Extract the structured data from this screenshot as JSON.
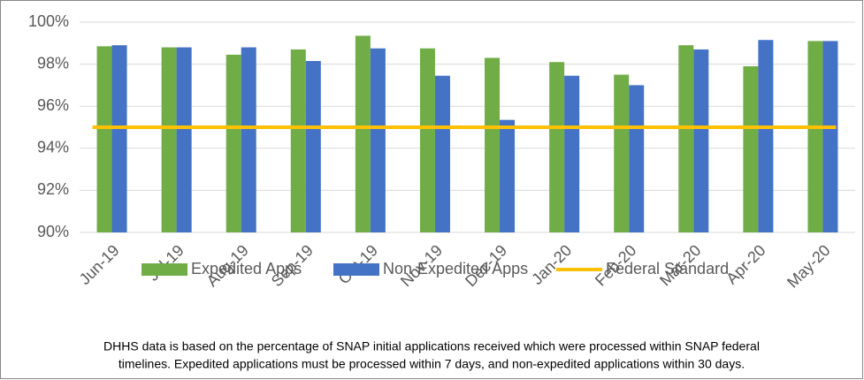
{
  "chart_data": {
    "type": "bar",
    "categories": [
      "Jun-19",
      "Jul-19",
      "Aug-19",
      "Sep-19",
      "Oct-19",
      "Nov-19",
      "Dec-19",
      "Jan-20",
      "Feb-20",
      "Mar-20",
      "Apr-20",
      "May-20"
    ],
    "series": [
      {
        "name": "Expedited Apps",
        "color": "#70ad47",
        "values": [
          98.85,
          98.8,
          98.45,
          98.7,
          99.35,
          98.75,
          98.3,
          98.1,
          97.5,
          98.9,
          97.9,
          99.1
        ]
      },
      {
        "name": "Non-Expedited Apps",
        "color": "#4472c4",
        "values": [
          98.9,
          98.8,
          98.8,
          98.15,
          98.75,
          97.45,
          95.35,
          97.45,
          97.0,
          98.7,
          99.15,
          99.1
        ]
      },
      {
        "name": "Federal Standard",
        "type": "line",
        "color": "#ffc000",
        "values": [
          95,
          95,
          95,
          95,
          95,
          95,
          95,
          95,
          95,
          95,
          95,
          95
        ]
      }
    ],
    "ylim": [
      90,
      100
    ],
    "yticks": [
      {
        "value": 90,
        "label": "90%"
      },
      {
        "value": 92,
        "label": "92%"
      },
      {
        "value": 94,
        "label": "94%"
      },
      {
        "value": 96,
        "label": "96%"
      },
      {
        "value": 98,
        "label": "98%"
      },
      {
        "value": 100,
        "label": "100%"
      }
    ],
    "grid": true,
    "legend": "bottom",
    "caption": [
      "DHHS data is based on the percentage of SNAP initial applications received which were processed within SNAP federal",
      "timelines. Expedited applications must be processed within 7 days, and non-expedited applications within 30 days."
    ]
  }
}
